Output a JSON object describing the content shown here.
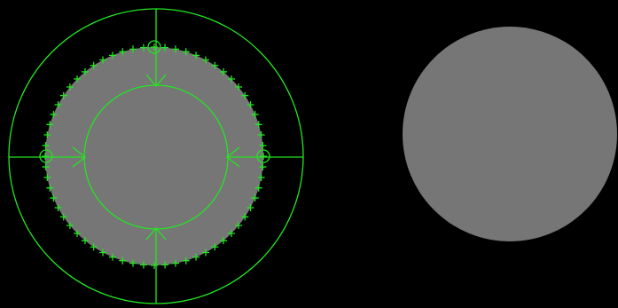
{
  "colors": {
    "background": "#000000",
    "disk_fill": "#767676",
    "overlay_stroke": "#22e622"
  },
  "icons": {
    "edge_point_marker": "plus-icon",
    "boundary_marker": "circle-icon",
    "search_direction": "arrow-icon"
  },
  "edge_point_count": 64
}
